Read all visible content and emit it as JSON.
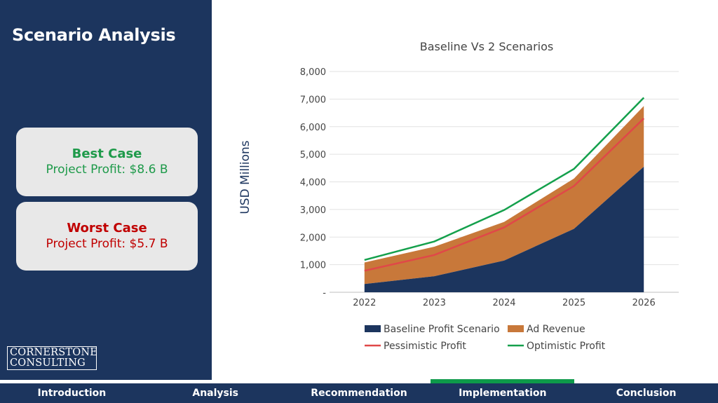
{
  "page": {
    "title": "Scenario Analysis"
  },
  "cards": {
    "best": {
      "title": "Best Case",
      "value": "Project Profit: $8.6 B"
    },
    "worst": {
      "title": "Worst Case",
      "value": "Project Profit: $5.7 B"
    }
  },
  "logo": {
    "line1": "CORNERSTONE",
    "line2": "CONSULTING"
  },
  "nav": {
    "items": [
      {
        "label": "Introduction"
      },
      {
        "label": "Analysis"
      },
      {
        "label": "Recommendation"
      },
      {
        "label": "Implementation",
        "active": true
      },
      {
        "label": "Conclusion"
      }
    ]
  },
  "colors": {
    "baseline": "#1c355e",
    "ad_revenue": "#c8783a",
    "pessimistic": "#e04848",
    "optimistic": "#14a04c"
  },
  "chart_data": {
    "type": "area",
    "title": "Baseline Vs 2 Scenarios",
    "ylabel": "USD Millions",
    "xlabel": "",
    "x": [
      "2022",
      "2023",
      "2024",
      "2025",
      "2026"
    ],
    "ylim": [
      0,
      8000
    ],
    "yticks": [
      "-",
      "1,000",
      "2,000",
      "3,000",
      "4,000",
      "5,000",
      "6,000",
      "7,000",
      "8,000"
    ],
    "grid": true,
    "legend_position": "bottom",
    "series": [
      {
        "name": "Baseline Profit Scenario",
        "kind": "area",
        "values": [
          300,
          580,
          1150,
          2300,
          4550
        ]
      },
      {
        "name": "Ad Revenue",
        "kind": "area",
        "values": [
          780,
          1070,
          1400,
          1820,
          2200
        ]
      },
      {
        "name": "Pessimistic Profit",
        "kind": "line",
        "values": [
          780,
          1350,
          2350,
          3850,
          6300
        ]
      },
      {
        "name": "Optimistic Profit",
        "kind": "line",
        "values": [
          1170,
          1840,
          2980,
          4470,
          7050
        ]
      }
    ]
  }
}
